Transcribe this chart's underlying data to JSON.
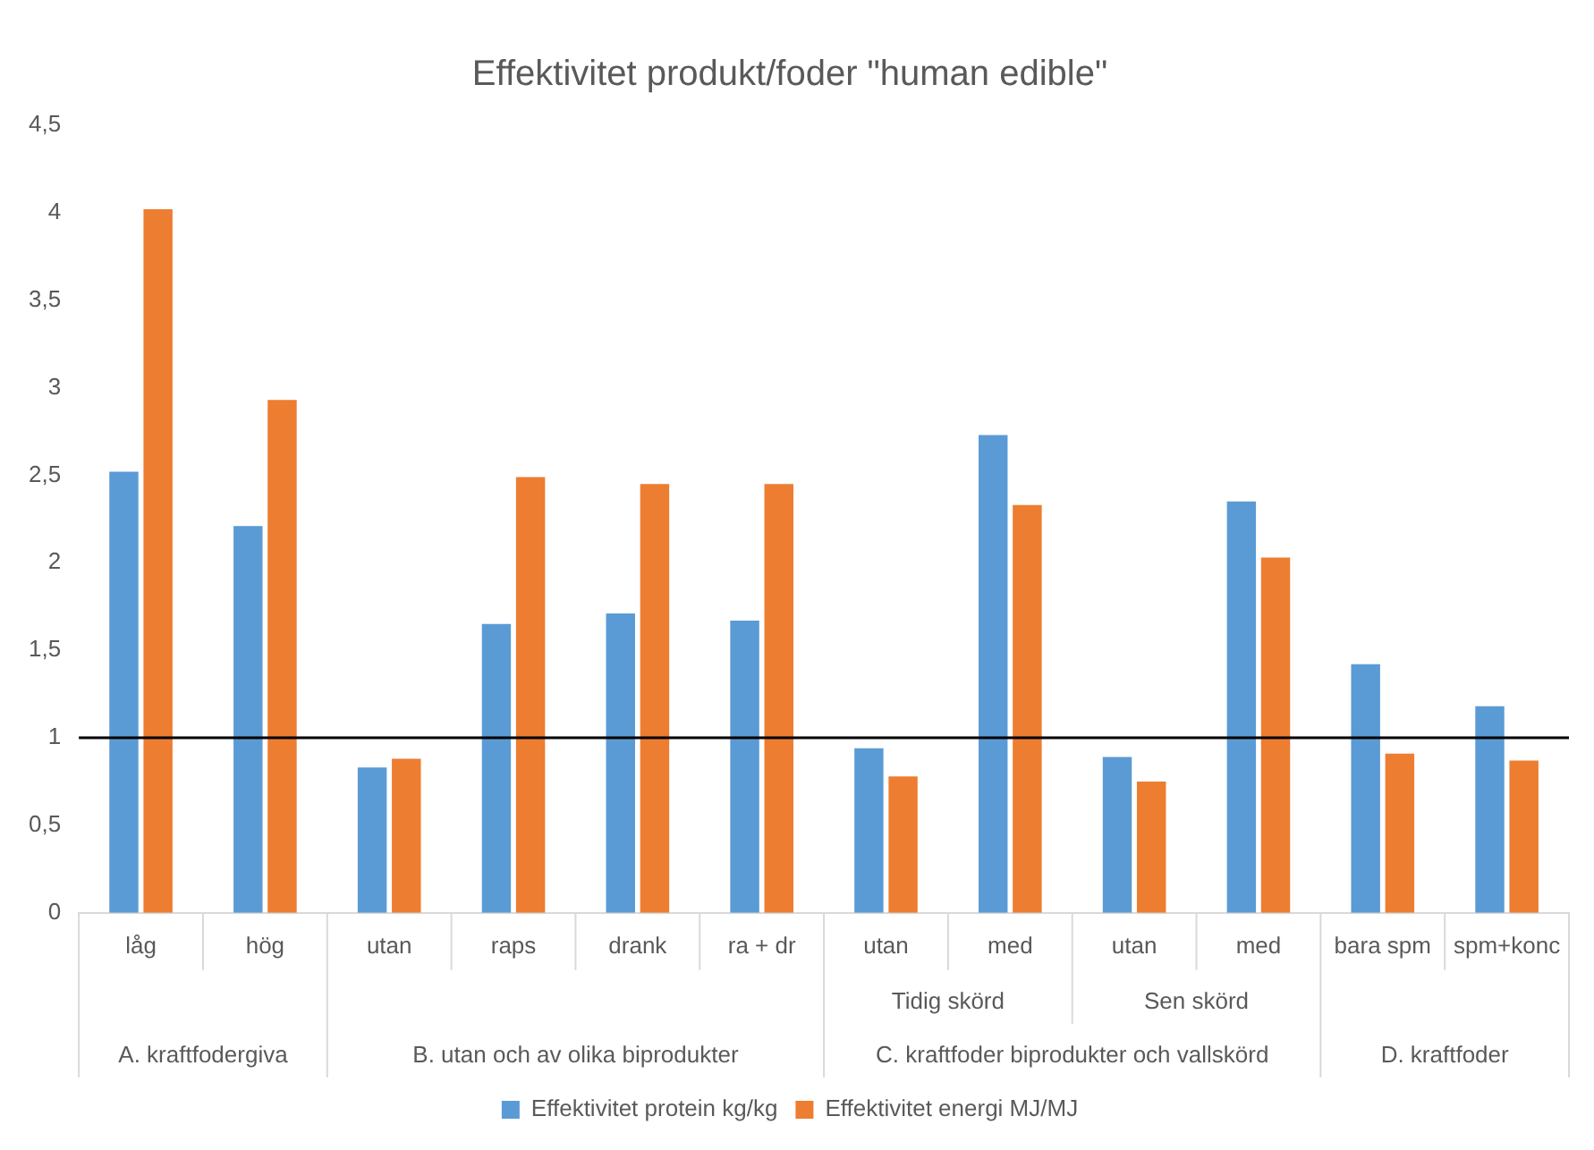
{
  "chart_data": {
    "type": "bar",
    "title": "Effektivitet produkt/foder \"human edible\"",
    "categories": [
      "låg",
      "hög",
      "utan",
      "raps",
      "drank",
      "ra + dr",
      "utan",
      "med",
      "utan",
      "med",
      "bara spm",
      "spm+konc"
    ],
    "series": [
      {
        "name": "Effektivitet protein kg/kg",
        "color": "#5b9bd5",
        "values": [
          2.52,
          2.21,
          0.83,
          1.65,
          1.71,
          1.67,
          0.94,
          2.73,
          0.89,
          2.35,
          1.42,
          1.18
        ]
      },
      {
        "name": "Effektivitet energi MJ/MJ",
        "color": "#ed7d31",
        "values": [
          4.02,
          2.93,
          0.88,
          2.49,
          2.45,
          2.45,
          0.78,
          2.33,
          0.75,
          2.03,
          0.91,
          0.87
        ]
      }
    ],
    "ylim": [
      0,
      4.5
    ],
    "yticks": [
      0,
      {
        "value": 0.5,
        "label": "0,5"
      },
      1,
      {
        "value": 1.5,
        "label": "1,5"
      },
      2,
      {
        "value": 2.5,
        "label": "2,5"
      },
      3,
      {
        "value": 3.5,
        "label": "3,5"
      },
      4,
      {
        "value": 4.5,
        "label": "4,5"
      }
    ],
    "grid": false,
    "legend": "bottom",
    "ref_lines": [
      {
        "axis": "y",
        "value": 1,
        "color": "#000000"
      }
    ],
    "annotations": [
      "Tidig skörd",
      "Sen skörd",
      "A. kraftfodergiva",
      "B. utan och av olika biprodukter",
      "C. kraftfoder biprodukter och vallskörd",
      "D. kraftfoder"
    ]
  }
}
